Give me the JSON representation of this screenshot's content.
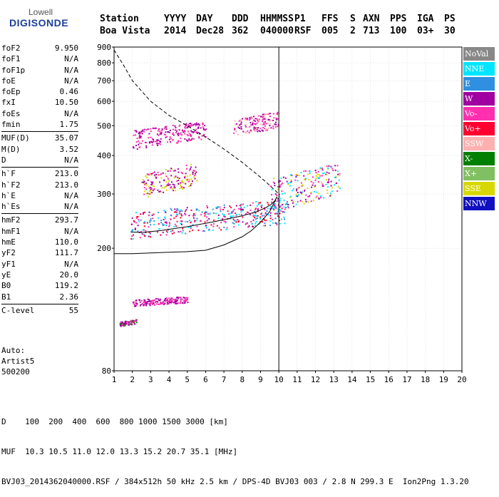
{
  "logo": {
    "line1": "Lowell",
    "line2": "DIGISONDE"
  },
  "header": {
    "columns": [
      {
        "label": "Station",
        "value": "Boa Vista"
      },
      {
        "label": "YYYY",
        "value": "2014"
      },
      {
        "label": "DAY",
        "value": "Dec28"
      },
      {
        "label": "DDD",
        "value": "362"
      },
      {
        "label": "HHMMSS",
        "value": "040000"
      },
      {
        "label": "P1",
        "value": "RSF"
      },
      {
        "label": "FFS",
        "value": "005"
      },
      {
        "label": "S",
        "value": "2"
      },
      {
        "label": "AXN",
        "value": "713"
      },
      {
        "label": "PPS",
        "value": "100"
      },
      {
        "label": "IGA",
        "value": "03+"
      },
      {
        "label": "PS",
        "value": "30"
      }
    ]
  },
  "params": [
    [
      {
        "name": "foF2",
        "value": "9.950"
      },
      {
        "name": "foF1",
        "value": "N/A"
      },
      {
        "name": "foF1p",
        "value": "N/A"
      },
      {
        "name": "foE",
        "value": "N/A"
      },
      {
        "name": "foEp",
        "value": "0.46"
      },
      {
        "name": "fxI",
        "value": "10.50"
      },
      {
        "name": "foEs",
        "value": "N/A"
      },
      {
        "name": "fmin",
        "value": "1.75"
      }
    ],
    [
      {
        "name": "MUF(D)",
        "value": "35.07"
      },
      {
        "name": "M(D)",
        "value": "3.52"
      },
      {
        "name": "D",
        "value": "N/A"
      }
    ],
    [
      {
        "name": "h`F",
        "value": "213.0"
      },
      {
        "name": "h`F2",
        "value": "213.0"
      },
      {
        "name": "h`E",
        "value": "N/A"
      },
      {
        "name": "h`Es",
        "value": "N/A"
      }
    ],
    [
      {
        "name": "hmF2",
        "value": "293.7"
      },
      {
        "name": "hmF1",
        "value": "N/A"
      },
      {
        "name": "hmE",
        "value": "110.0"
      },
      {
        "name": "yF2",
        "value": "111.7"
      },
      {
        "name": "yF1",
        "value": "N/A"
      },
      {
        "name": "yE",
        "value": "20.0"
      },
      {
        "name": "B0",
        "value": "119.2"
      },
      {
        "name": "B1",
        "value": "2.36"
      }
    ],
    [
      {
        "name": "C-level",
        "value": "55"
      }
    ]
  ],
  "extra": {
    "line1": "Auto:",
    "line2": "Artist5",
    "line3": "500200"
  },
  "legend": [
    {
      "label": "NoVal",
      "color": "#888888"
    },
    {
      "label": "NNE",
      "color": "#00e5ff"
    },
    {
      "label": "E",
      "color": "#2f8fe0"
    },
    {
      "label": "W",
      "color": "#a000a0"
    },
    {
      "label": "Vo-",
      "color": "#ff2fb0"
    },
    {
      "label": "Vo+",
      "color": "#ff0030"
    },
    {
      "label": "SSW",
      "color": "#ffb0b0"
    },
    {
      "label": "X-",
      "color": "#008000"
    },
    {
      "label": "X+",
      "color": "#80c060"
    },
    {
      "label": "SSE",
      "color": "#d8d800"
    },
    {
      "label": "NNW",
      "color": "#1010c0"
    }
  ],
  "footer": {
    "line1": "D    100  200  400  600  800 1000 1500 3000 [km]",
    "line2": "MUF  10.3 10.5 11.0 12.0 13.3 15.2 20.7 35.1 [MHz]",
    "line3": "BVJ03_2014362040000.RSF / 384x512h 50 kHz 2.5 km / DPS-4D BVJ03 003 / 2.8 N 299.3 E  Ion2Png 1.3.20"
  },
  "chart_data": {
    "type": "scatter",
    "xlim": [
      1,
      20
    ],
    "ylim": [
      80,
      900
    ],
    "xticks": [
      1,
      2,
      3,
      4,
      5,
      6,
      7,
      8,
      9,
      10,
      11,
      12,
      13,
      14,
      15,
      16,
      17,
      18,
      19,
      20
    ],
    "yticks": [
      80,
      200,
      300,
      400,
      500,
      600,
      700,
      800,
      900
    ],
    "y_scale": "log",
    "grid": true,
    "vertical_marker_x": 10,
    "profile_curve": {
      "x": [
        1.0,
        2.0,
        3.0,
        4.0,
        5.0,
        6.0,
        7.0,
        8.0,
        8.5,
        9.0,
        9.5,
        9.9
      ],
      "y": [
        192,
        192,
        193,
        194,
        195,
        197,
        205,
        218,
        228,
        243,
        263,
        294
      ]
    },
    "trace_curve": {
      "x": [
        1.9,
        2.5,
        3.5,
        5.0,
        6.5,
        8.0,
        8.8,
        9.3,
        9.6,
        9.8,
        9.9
      ],
      "y": [
        226,
        225,
        228,
        235,
        244,
        255,
        263,
        271,
        278,
        286,
        294
      ]
    },
    "muf_curve": {
      "x": [
        1.0,
        1.5,
        2.0,
        3.0,
        4.0,
        5.0,
        6.0,
        7.0,
        8.0,
        9.0,
        9.5,
        10.0
      ],
      "y": [
        880,
        790,
        700,
        600,
        540,
        500,
        460,
        420,
        380,
        340,
        320,
        300
      ]
    },
    "trace_clusters": [
      {
        "label": "F2 o-trace",
        "x": [
          1.9,
          10.5
        ],
        "y": [
          215,
          290
        ],
        "colors": [
          "#ff0030",
          "#a000a0",
          "#00e5ff",
          "#2f8fe0",
          "#ff2fb0"
        ]
      },
      {
        "label": "F2 x-trace",
        "x": [
          9.5,
          13.3
        ],
        "y": [
          260,
          380
        ],
        "colors": [
          "#a000a0",
          "#ff2fb0",
          "#d8d800",
          "#00e5ff"
        ]
      },
      {
        "label": "multihop",
        "x": [
          2.0,
          6.0
        ],
        "y": [
          420,
          520
        ],
        "colors": [
          "#a000a0",
          "#ff2fb0"
        ]
      },
      {
        "label": "high",
        "x": [
          7.5,
          10.0
        ],
        "y": [
          460,
          560
        ],
        "colors": [
          "#a000a0",
          "#ff2fb0",
          "#ffb0b0"
        ]
      },
      {
        "label": "spread",
        "x": [
          2.5,
          5.5
        ],
        "y": [
          290,
          380
        ],
        "colors": [
          "#d8d800",
          "#ff2fb0",
          "#a000a0"
        ]
      },
      {
        "label": "E region",
        "x": [
          2.0,
          5.0
        ],
        "y": [
          130,
          140
        ],
        "colors": [
          "#a000a0",
          "#ff2fb0"
        ]
      },
      {
        "label": "low",
        "x": [
          1.3,
          2.2
        ],
        "y": [
          112,
          118
        ],
        "colors": [
          "#ff2fb0",
          "#a000a0",
          "#008000"
        ]
      }
    ]
  }
}
